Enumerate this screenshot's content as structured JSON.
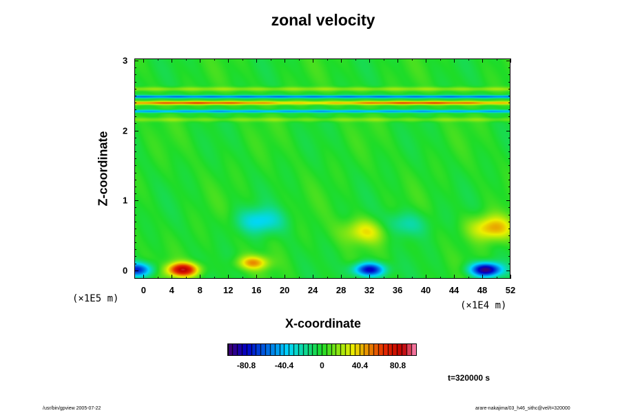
{
  "chart_data": {
    "type": "heatmap",
    "title": "zonal velocity",
    "xlabel": "X-coordinate",
    "ylabel": "Z-coordinate",
    "x_unit": "(×1E4 m)",
    "z_unit": "(×1E5 m)",
    "xlim": [
      -1.3,
      52
    ],
    "ylim": [
      -0.12,
      3.03
    ],
    "x_ticks": [
      "0",
      "4",
      "8",
      "12",
      "16",
      "20",
      "24",
      "28",
      "32",
      "36",
      "40",
      "44",
      "48",
      "52"
    ],
    "y_ticks": [
      "0",
      "1",
      "2",
      "3"
    ],
    "colorbar": {
      "range": [
        -101,
        101
      ],
      "ticks": [
        "-80.8",
        "-40.4",
        "0",
        "40.4",
        "80.8"
      ],
      "colormap": "rainbow (purple-blue-cyan-green-yellow-red-pink)"
    },
    "features": [
      {
        "x": 32,
        "z": 0.0,
        "value": -85
      },
      {
        "x": 48.6,
        "z": 0.0,
        "value": -100
      },
      {
        "x": -1,
        "z": 0.0,
        "value": -70
      },
      {
        "x": 5.5,
        "z": 0.0,
        "value": 85
      },
      {
        "x": 15.5,
        "z": 0.1,
        "value": 45
      },
      {
        "x": 49.5,
        "z": 0.6,
        "value": 45
      },
      {
        "x": 31.5,
        "z": 0.55,
        "value": 35
      },
      {
        "x": 16.5,
        "z": 0.7,
        "value": -35
      },
      {
        "x": 37,
        "z": 0.65,
        "value": -25
      },
      {
        "x": 26,
        "z": 2.4,
        "value": 60
      },
      {
        "x": 26,
        "z": 2.5,
        "value": -60
      },
      {
        "x": 26,
        "z": 2.3,
        "value": -50
      }
    ],
    "time_label": "t=320000 s"
  },
  "footer": {
    "left": "/usr/bin/gpview 2005-07-22",
    "right": "arare-nakajima/03_h46_sithc@vel/t=320000"
  }
}
